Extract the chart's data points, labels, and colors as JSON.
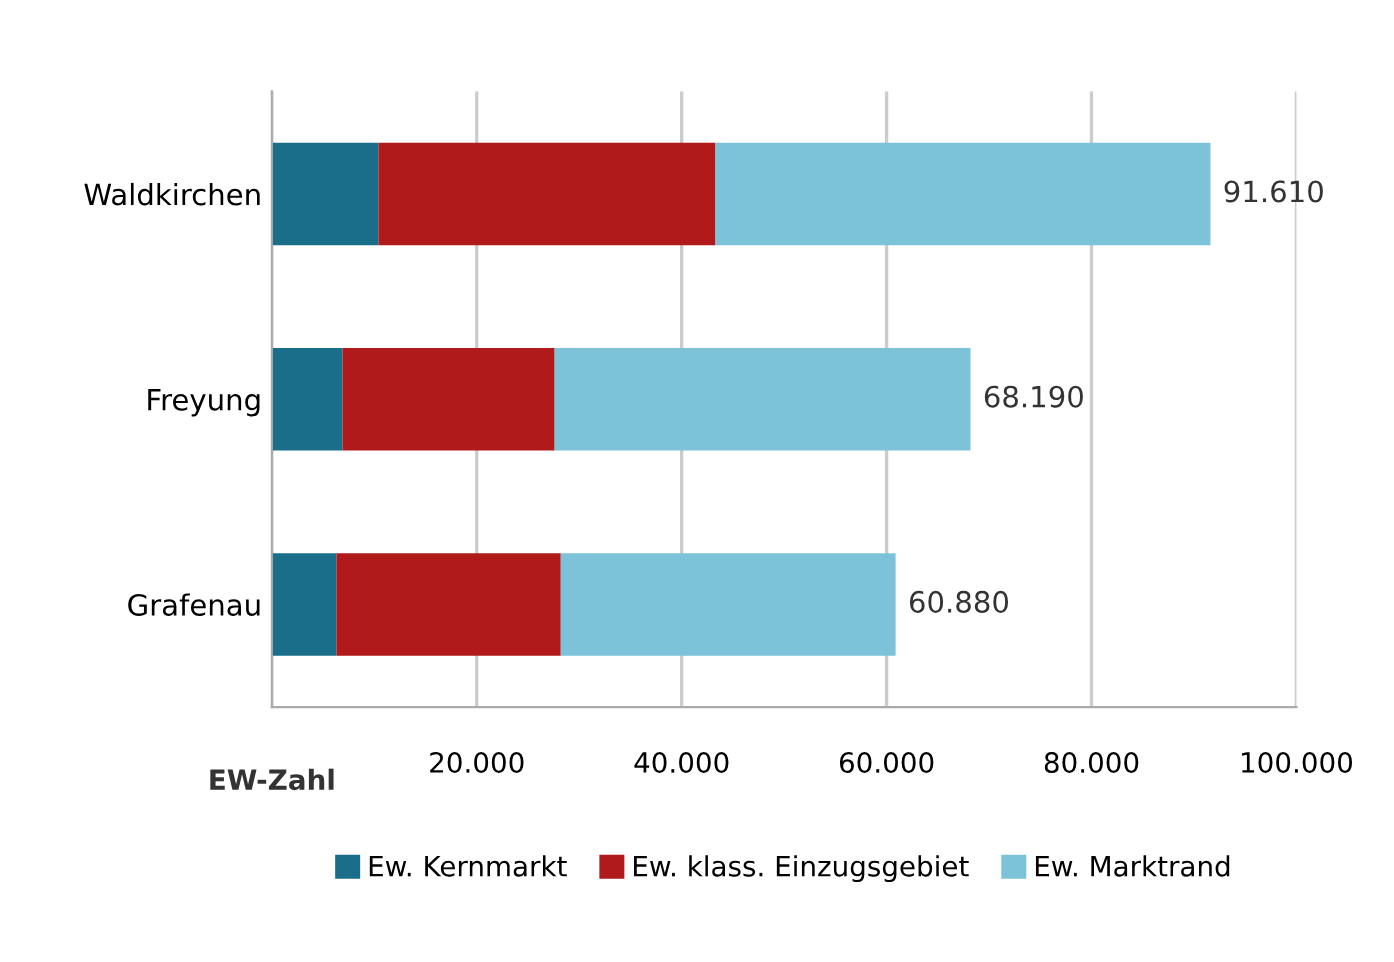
{
  "chart_data": {
    "type": "bar",
    "orientation": "horizontal",
    "stacked": true,
    "categories": [
      "Waldkirchen",
      "Freyung",
      "Grafenau"
    ],
    "series": [
      {
        "name": "Ew. Kernmarkt",
        "color": "#1a6e8a",
        "values": [
          10400,
          6900,
          6300
        ]
      },
      {
        "name": "Ew. klass. Einzugsgebiet",
        "color": "#b01a1a",
        "values": [
          32900,
          20700,
          21900
        ]
      },
      {
        "name": "Ew. Marktrand",
        "color": "#7cc3d9",
        "values": [
          48310,
          40590,
          32680
        ]
      }
    ],
    "totals": [
      "91.610",
      "68.190",
      "60.880"
    ],
    "xlabel": "EW-Zahl",
    "xlim": [
      0,
      100000
    ],
    "xticks": [
      {
        "value": 0,
        "label": null
      },
      {
        "value": 20000,
        "label": "20.000"
      },
      {
        "value": 40000,
        "label": "40.000"
      },
      {
        "value": 60000,
        "label": "60.000"
      },
      {
        "value": 80000,
        "label": "80.000"
      },
      {
        "value": 100000,
        "label": "100.000"
      }
    ],
    "grid": "x",
    "legend": "bottom"
  }
}
